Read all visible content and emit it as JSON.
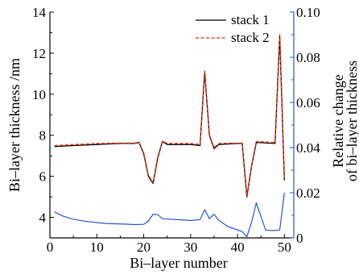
{
  "chart_data": {
    "type": "line",
    "xlabel": "Bi–layer number",
    "ylabel_left": "Bi–layer thickness /nm",
    "ylabel_right": [
      "Relative change",
      "of bi–layer thickness"
    ],
    "xlim": [
      0,
      52
    ],
    "ylim_left": [
      3,
      14
    ],
    "ylim_right": [
      0,
      0.1
    ],
    "x_ticks": [
      0,
      10,
      20,
      30,
      40,
      50
    ],
    "y_left_ticks": [
      4,
      6,
      8,
      10,
      12,
      14
    ],
    "y_right_ticks": [
      0,
      0.02,
      0.04,
      0.06,
      0.08,
      0.1
    ],
    "y_right_tick_labels": [
      "0",
      "0.02",
      "0.04",
      "0.06",
      "0.08",
      "0.10"
    ],
    "grid": false,
    "legend_position": "top-right",
    "series": [
      {
        "name": "stack 1",
        "axis": "left",
        "color": "#000000",
        "style": "solid",
        "x": [
          1,
          5,
          10,
          15,
          18,
          19,
          20,
          21,
          22,
          23,
          24,
          25,
          30,
          32,
          33,
          34,
          35,
          36,
          40,
          41,
          42,
          43,
          44,
          48,
          49,
          50
        ],
        "y": [
          7.45,
          7.5,
          7.55,
          7.6,
          7.6,
          7.65,
          7.1,
          6.0,
          5.65,
          6.9,
          7.7,
          7.55,
          7.55,
          7.5,
          11.1,
          8.0,
          7.35,
          7.55,
          7.6,
          7.6,
          5.0,
          6.5,
          7.65,
          7.6,
          12.85,
          5.8
        ]
      },
      {
        "name": "stack 2",
        "axis": "left",
        "color": "#ff2a00",
        "style": "dashed",
        "x": [
          1,
          5,
          10,
          15,
          18,
          19,
          20,
          21,
          22,
          23,
          24,
          25,
          30,
          32,
          33,
          34,
          35,
          36,
          40,
          41,
          42,
          43,
          44,
          48,
          49,
          50
        ],
        "y": [
          7.5,
          7.55,
          7.6,
          7.62,
          7.62,
          7.67,
          7.15,
          6.05,
          5.7,
          6.95,
          7.72,
          7.6,
          7.6,
          7.55,
          11.15,
          8.05,
          7.4,
          7.6,
          7.62,
          7.62,
          5.05,
          6.55,
          7.7,
          7.65,
          12.9,
          5.85
        ]
      },
      {
        "name": "",
        "axis": "right",
        "color": "#2255dd",
        "style": "solid",
        "x": [
          1,
          3,
          5,
          8,
          12,
          16,
          18,
          20,
          21,
          22,
          23,
          24,
          30,
          32,
          33,
          34,
          35,
          36,
          38,
          41,
          42,
          43,
          44,
          46,
          47,
          48,
          49,
          50
        ],
        "y": [
          0.0115,
          0.0095,
          0.0083,
          0.0072,
          0.0064,
          0.0061,
          0.0059,
          0.006,
          0.0075,
          0.0105,
          0.0103,
          0.0085,
          0.0077,
          0.0081,
          0.0125,
          0.0085,
          0.0105,
          0.0078,
          0.005,
          0.0028,
          0.0005,
          0.007,
          0.0155,
          0.0035,
          0.0033,
          0.0033,
          0.0035,
          0.02
        ]
      }
    ]
  },
  "colors": {
    "axis": "#000000",
    "right_axis": "#2255dd"
  }
}
